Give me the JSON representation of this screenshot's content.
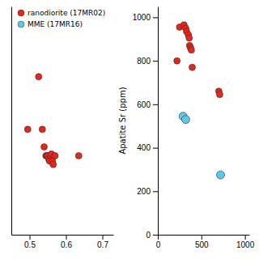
{
  "chart_data": [
    {
      "type": "scatter",
      "series": [
        {
          "name": "ranodiorite (17MR02)",
          "color": "#e8251a",
          "marker": "circle",
          "x": [
            0.495,
            0.525,
            0.535,
            0.54,
            0.545,
            0.548,
            0.55,
            0.553,
            0.555,
            0.558,
            0.56,
            0.563,
            0.565,
            0.57,
            0.635
          ],
          "values": [
            430,
            460,
            430,
            420,
            415,
            415,
            415,
            413,
            412,
            415,
            416,
            412,
            410,
            415,
            415
          ]
        },
        {
          "name": "MME (17MR16)",
          "color": "#5bc8e8",
          "marker": "circle",
          "x": [],
          "values": []
        }
      ],
      "xlim": [
        0.45,
        0.73
      ],
      "xticks": [
        0.5,
        0.6,
        0.7
      ],
      "ylim": [
        370,
        500
      ],
      "tick_labels": "x",
      "legend": "upper left"
    },
    {
      "type": "scatter",
      "ylabel": "Apatite Sr (ppm)",
      "series": [
        {
          "color": "#e8251a",
          "marker": "circle",
          "x": [
            220,
            250,
            300,
            320,
            330,
            350,
            360,
            365,
            375,
            385,
            395,
            700,
            710
          ],
          "values": [
            800,
            955,
            965,
            950,
            935,
            920,
            905,
            870,
            860,
            850,
            770,
            660,
            645
          ]
        },
        {
          "color": "#5bc8e8",
          "marker": "circle",
          "x": [
            290,
            320,
            720
          ],
          "values": [
            545,
            530,
            275
          ]
        }
      ],
      "xlim": [
        0,
        1050
      ],
      "xticks": [
        0,
        500,
        1000
      ],
      "ylim": [
        0,
        1050
      ],
      "yticks": [
        0,
        200,
        400,
        600,
        800,
        1000
      ]
    }
  ]
}
